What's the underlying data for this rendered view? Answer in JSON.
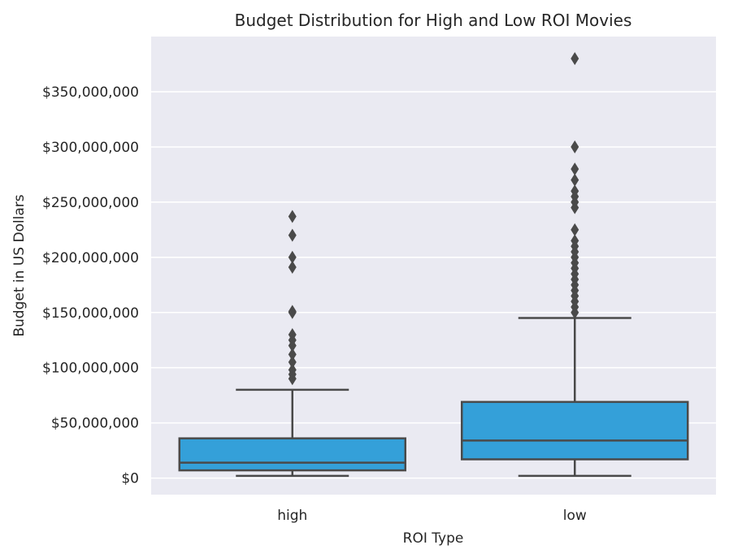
{
  "chart_data": {
    "type": "box",
    "title": "Budget Distribution for High and Low ROI Movies",
    "xlabel": "ROI Type",
    "ylabel": "Budget in US Dollars",
    "ylim": [
      -15000000,
      400000000
    ],
    "yticks": [
      0,
      50000000,
      100000000,
      150000000,
      200000000,
      250000000,
      300000000,
      350000000
    ],
    "ytick_labels": [
      "$0",
      "$50,000,000",
      "$100,000,000",
      "$150,000,000",
      "$200,000,000",
      "$250,000,000",
      "$300,000,000",
      "$350,000,000"
    ],
    "categories": [
      "high",
      "low"
    ],
    "grid": true,
    "colors": {
      "plot_background": "#EAEAF2",
      "grid": "#FFFFFF",
      "box_fill": "#34A0D9",
      "box_edge": "#4A4A4A"
    },
    "boxes": [
      {
        "category": "high",
        "whisker_low": 2000000,
        "q1": 7000000,
        "median": 14000000,
        "q3": 36000000,
        "whisker_high": 80000000,
        "outliers": [
          237000000,
          220000000,
          200000000,
          191000000,
          151000000,
          150000000,
          130000000,
          125000000,
          120000000,
          112000000,
          105000000,
          98000000,
          94000000,
          90000000
        ]
      },
      {
        "category": "low",
        "whisker_low": 2000000,
        "q1": 17000000,
        "median": 34000000,
        "q3": 69000000,
        "whisker_high": 145000000,
        "outliers": [
          380000000,
          300000000,
          280000000,
          270000000,
          260000000,
          255000000,
          250000000,
          245000000,
          225000000,
          215000000,
          210000000,
          205000000,
          200000000,
          195000000,
          190000000,
          185000000,
          180000000,
          175000000,
          170000000,
          165000000,
          160000000,
          155000000,
          150000000
        ]
      }
    ]
  }
}
